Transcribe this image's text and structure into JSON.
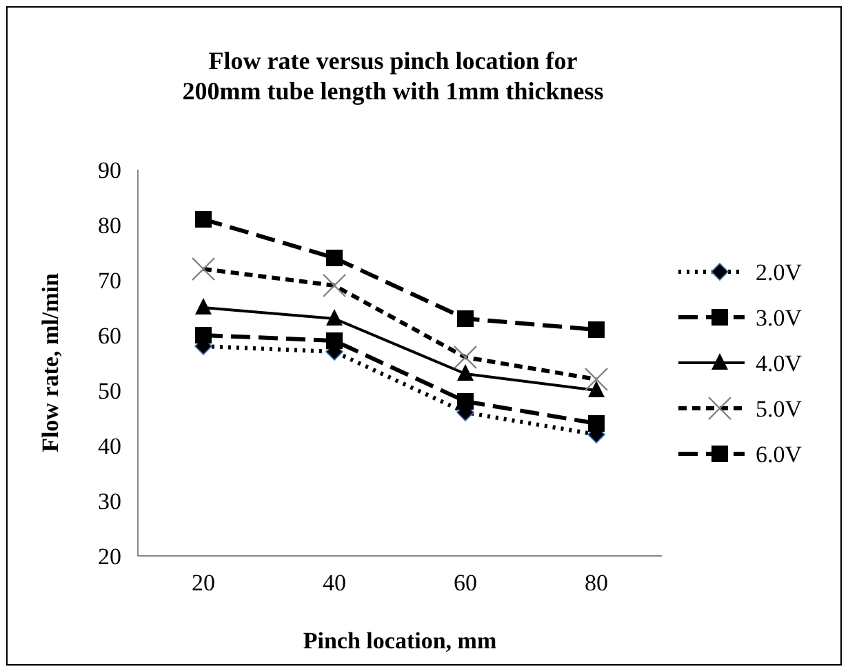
{
  "chart_data": {
    "type": "line",
    "title": "Flow rate versus pinch location for 200mm tube length with 1mm thickness",
    "xlabel": "Pinch location, mm",
    "ylabel": "Flow rate, ml/min",
    "categories": [
      "20",
      "40",
      "60",
      "80"
    ],
    "ylim": [
      20,
      90
    ],
    "yticks": [
      20,
      30,
      40,
      50,
      60,
      70,
      80,
      90
    ],
    "grid": false,
    "legend": "right",
    "series": [
      {
        "name": "2.0V",
        "color": "#000000",
        "marker": "diamond",
        "line_style": "dotted",
        "values": [
          58,
          57,
          46,
          42
        ]
      },
      {
        "name": "3.0V",
        "color": "#000000",
        "marker": "square",
        "line_style": "dashed",
        "values": [
          60,
          59,
          48,
          44
        ]
      },
      {
        "name": "4.0V",
        "color": "#000000",
        "marker": "triangle",
        "line_style": "solid",
        "values": [
          65,
          63,
          53,
          50
        ]
      },
      {
        "name": "5.0V",
        "color": "#000000",
        "marker": "cross",
        "line_style": "dashed",
        "values": [
          72,
          69,
          56,
          52
        ]
      },
      {
        "name": "6.0V",
        "color": "#000000",
        "marker": "square",
        "line_style": "dashed",
        "values": [
          81,
          74,
          63,
          61
        ]
      }
    ]
  }
}
